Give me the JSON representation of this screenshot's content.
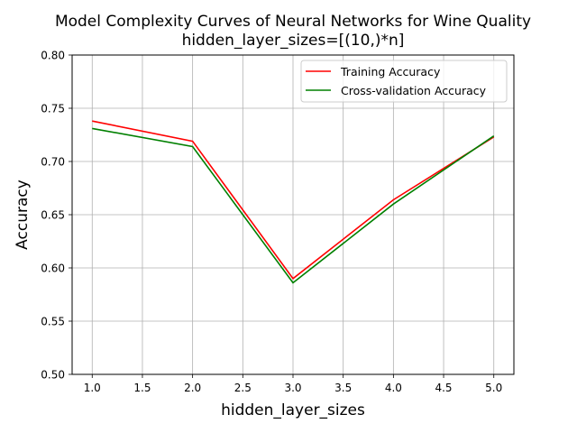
{
  "chart_data": {
    "type": "line",
    "title_line1": "Model Complexity Curves of Neural Networks for Wine Quality",
    "title_line2": "hidden_layer_sizes=[(10,)*n]",
    "xlabel": "hidden_layer_sizes",
    "ylabel": "Accuracy",
    "x": [
      1.0,
      2.0,
      3.0,
      4.0,
      5.0
    ],
    "xlim": [
      0.8,
      5.2
    ],
    "ylim": [
      0.5,
      0.8
    ],
    "xticks": [
      1.0,
      1.5,
      2.0,
      2.5,
      3.0,
      3.5,
      4.0,
      4.5,
      5.0
    ],
    "yticks": [
      0.5,
      0.55,
      0.6,
      0.65,
      0.7,
      0.75,
      0.8
    ],
    "xtick_labels": [
      "1.0",
      "1.5",
      "2.0",
      "2.5",
      "3.0",
      "3.5",
      "4.0",
      "4.5",
      "5.0"
    ],
    "ytick_labels": [
      "0.50",
      "0.55",
      "0.60",
      "0.65",
      "0.70",
      "0.75",
      "0.80"
    ],
    "grid": true,
    "legend_position": "top-right",
    "series": [
      {
        "name": "Training Accuracy",
        "color": "#ff0000",
        "values": [
          0.738,
          0.719,
          0.59,
          0.664,
          0.723
        ]
      },
      {
        "name": "Cross-validation Accuracy",
        "color": "#008000",
        "values": [
          0.731,
          0.714,
          0.586,
          0.66,
          0.724
        ]
      }
    ]
  }
}
